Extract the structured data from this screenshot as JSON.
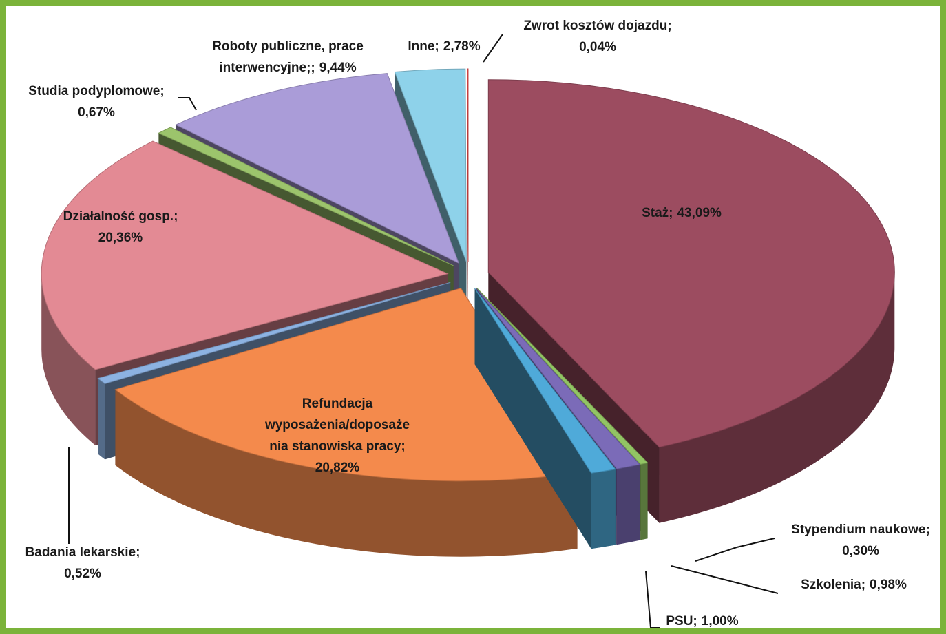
{
  "chart_data": {
    "type": "pie3d",
    "categories": [
      "Staż;",
      "Stypendium naukowe;",
      "Szkolenia;",
      "PSU;",
      "Refundacja\nwyposażenia/doposaże\nnia stanowiska pracy;",
      "Badania lekarskie;",
      "Działalność gosp.;",
      "Studia podyplomowe;",
      "Roboty publiczne, prace\ninterwencyjne;;",
      "Inne;",
      "Zwrot kosztów dojazdu;"
    ],
    "values": [
      43.09,
      0.3,
      0.98,
      1.0,
      20.82,
      0.52,
      20.36,
      0.67,
      9.44,
      2.78,
      0.04
    ],
    "value_labels": [
      "43,09%",
      "0,30%",
      "0,98%",
      "1,00%",
      "20,82%",
      "0,52%",
      "20,36%",
      "0,67%",
      "9,44%",
      "2,78%",
      "0,04%"
    ],
    "colors": [
      "#9c4c60",
      "#92c464",
      "#7b6bb8",
      "#4faad9",
      "#f48a4c",
      "#8cb2e2",
      "#e38a94",
      "#9cc46c",
      "#aa9cd8",
      "#8ed2ea",
      "#e84848"
    ]
  }
}
